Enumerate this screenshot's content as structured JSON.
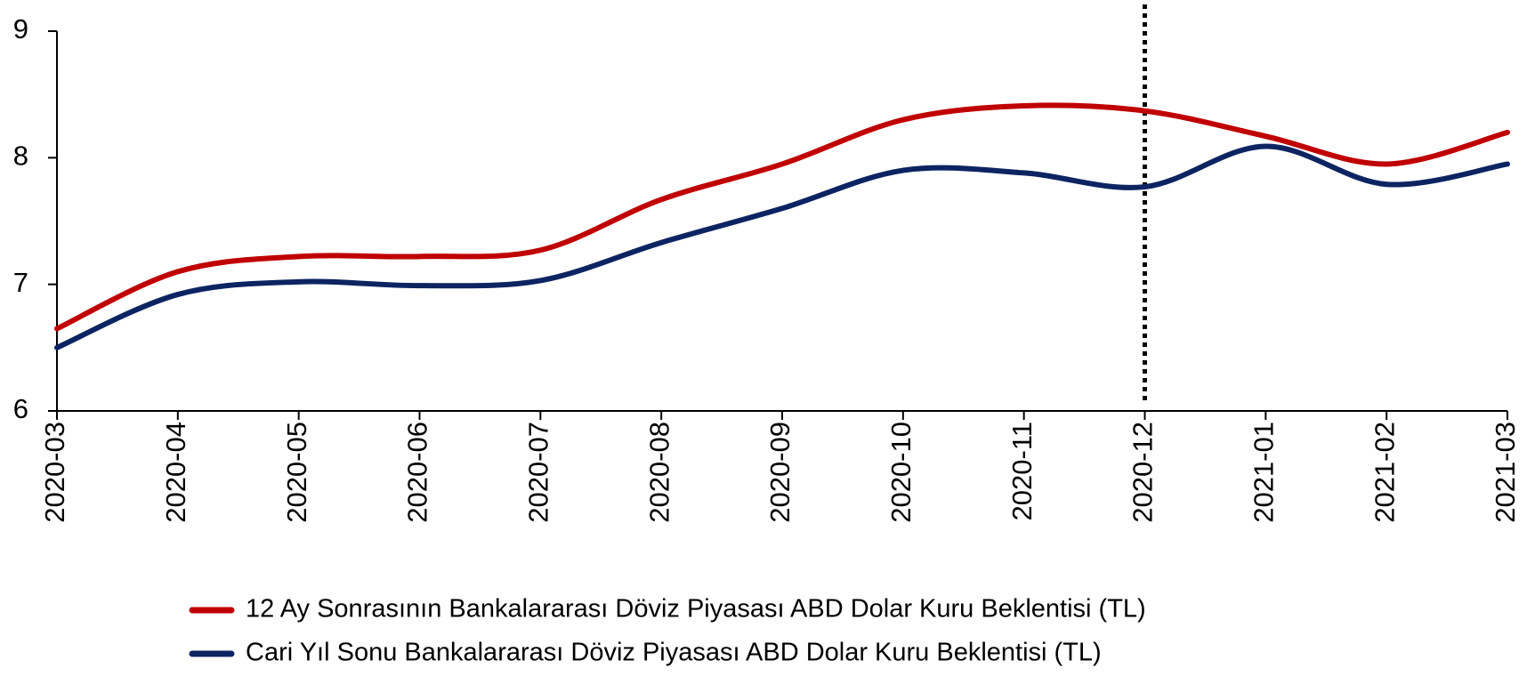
{
  "chart_data": {
    "type": "line",
    "categories": [
      "2020-03",
      "2020-04",
      "2020-05",
      "2020-06",
      "2020-07",
      "2020-08",
      "2020-09",
      "2020-10",
      "2020-11",
      "2020-12",
      "2021-01",
      "2021-02",
      "2021-03"
    ],
    "series": [
      {
        "name": "12 Ay Sonrasının Bankalararası Döviz Piyasası ABD Dolar Kuru Beklentisi (TL)",
        "color": "#c00000",
        "values": [
          6.65,
          7.1,
          7.22,
          7.22,
          7.27,
          7.67,
          7.95,
          8.3,
          8.41,
          8.37,
          8.17,
          7.95,
          8.2
        ]
      },
      {
        "name": "Cari Yıl Sonu Bankalararası Döviz Piyasası ABD Dolar Kuru Beklentisi (TL)",
        "color": "#0c2461",
        "values": [
          6.5,
          6.92,
          7.02,
          6.99,
          7.03,
          7.33,
          7.6,
          7.9,
          7.88,
          7.77,
          8.09,
          7.79,
          7.95
        ]
      }
    ],
    "ylim": [
      6,
      9
    ],
    "yticks": [
      6,
      7,
      8,
      9
    ],
    "grid": false,
    "legend": "bottom",
    "vline_at": "2020-12"
  }
}
